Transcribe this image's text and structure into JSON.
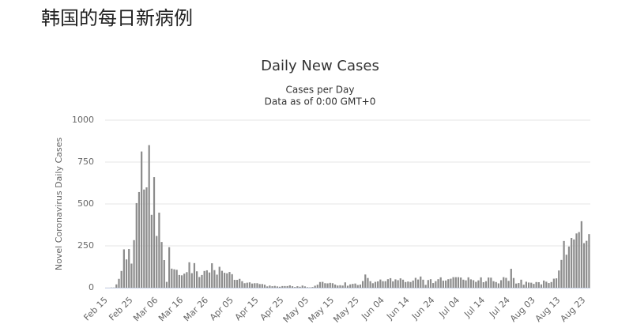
{
  "header": {
    "title": "韩国的每日新病例"
  },
  "chart_data": {
    "type": "bar",
    "title": "Daily New Cases",
    "subtitle": "Cases per Day",
    "note": "Data as of 0:00 GMT+0",
    "y_label": "Novel Coronavirus Daily Cases",
    "categories": [
      "Feb 15",
      null,
      null,
      null,
      null,
      null,
      null,
      null,
      null,
      null,
      "Feb 25",
      null,
      null,
      null,
      null,
      null,
      null,
      null,
      null,
      null,
      "Mar 06",
      null,
      null,
      null,
      null,
      null,
      null,
      null,
      null,
      null,
      "Mar 16",
      null,
      null,
      null,
      null,
      null,
      null,
      null,
      null,
      null,
      "Mar 26",
      null,
      null,
      null,
      null,
      null,
      null,
      null,
      null,
      null,
      "Apr 05",
      null,
      null,
      null,
      null,
      null,
      null,
      null,
      null,
      null,
      "Apr 15",
      null,
      null,
      null,
      null,
      null,
      null,
      null,
      null,
      null,
      "Apr 25",
      null,
      null,
      null,
      null,
      null,
      null,
      null,
      null,
      null,
      "May 05",
      null,
      null,
      null,
      null,
      null,
      null,
      null,
      null,
      null,
      "May 15",
      null,
      null,
      null,
      null,
      null,
      null,
      null,
      null,
      null,
      "May 25",
      null,
      null,
      null,
      null,
      null,
      null,
      null,
      null,
      null,
      "Jun 04",
      null,
      null,
      null,
      null,
      null,
      null,
      null,
      null,
      null,
      "Jun 14",
      null,
      null,
      null,
      null,
      null,
      null,
      null,
      null,
      null,
      "Jun 24",
      null,
      null,
      null,
      null,
      null,
      null,
      null,
      null,
      null,
      "Jul 04",
      null,
      null,
      null,
      null,
      null,
      null,
      null,
      null,
      null,
      "Jul 14",
      null,
      null,
      null,
      null,
      null,
      null,
      null,
      null,
      null,
      "Jul 24",
      null,
      null,
      null,
      null,
      null,
      null,
      null,
      null,
      null,
      "Aug 03",
      null,
      null,
      null,
      null,
      null,
      null,
      null,
      null,
      null,
      "Aug 13",
      null,
      null,
      null,
      null,
      null,
      null,
      null,
      null,
      null,
      "Aug 23",
      null,
      null
    ],
    "values": [
      0,
      0,
      1,
      1,
      20,
      53,
      100,
      229,
      169,
      231,
      144,
      284,
      505,
      571,
      813,
      586,
      599,
      851,
      435,
      660,
      309,
      448,
      273,
      165,
      35,
      242,
      114,
      110,
      107,
      76,
      74,
      84,
      93,
      152,
      87,
      147,
      98,
      64,
      76,
      100,
      104,
      91,
      146,
      105,
      78,
      125,
      101,
      89,
      86,
      94,
      81,
      47,
      47,
      53,
      39,
      27,
      30,
      32,
      25,
      27,
      27,
      22,
      22,
      18,
      8,
      13,
      9,
      11,
      8,
      6,
      10,
      10,
      10,
      14,
      9,
      4,
      9,
      6,
      13,
      8,
      3,
      2,
      4,
      12,
      18,
      34,
      35,
      27,
      26,
      29,
      27,
      19,
      13,
      15,
      13,
      32,
      12,
      20,
      23,
      25,
      16,
      19,
      40,
      79,
      58,
      39,
      27,
      35,
      38,
      49,
      39,
      39,
      51,
      57,
      38,
      50,
      45,
      56,
      48,
      34,
      37,
      34,
      43,
      59,
      49,
      67,
      48,
      17,
      46,
      51,
      28,
      39,
      51,
      62,
      42,
      43,
      51,
      54,
      63,
      63,
      63,
      61,
      48,
      44,
      62,
      50,
      45,
      35,
      44,
      62,
      33,
      39,
      61,
      60,
      39,
      34,
      26,
      45,
      63,
      59,
      41,
      113,
      58,
      25,
      28,
      48,
      18,
      36,
      31,
      30,
      23,
      34,
      33,
      20,
      43,
      36,
      28,
      34,
      54,
      56,
      103,
      166,
      279,
      197,
      246,
      297,
      288,
      324,
      332,
      397,
      266,
      280,
      320
    ],
    "color": "#8c8c8c",
    "ylim": [
      0,
      1000
    ],
    "yticks": [
      0,
      250,
      500,
      750,
      1000
    ],
    "grid": true
  }
}
